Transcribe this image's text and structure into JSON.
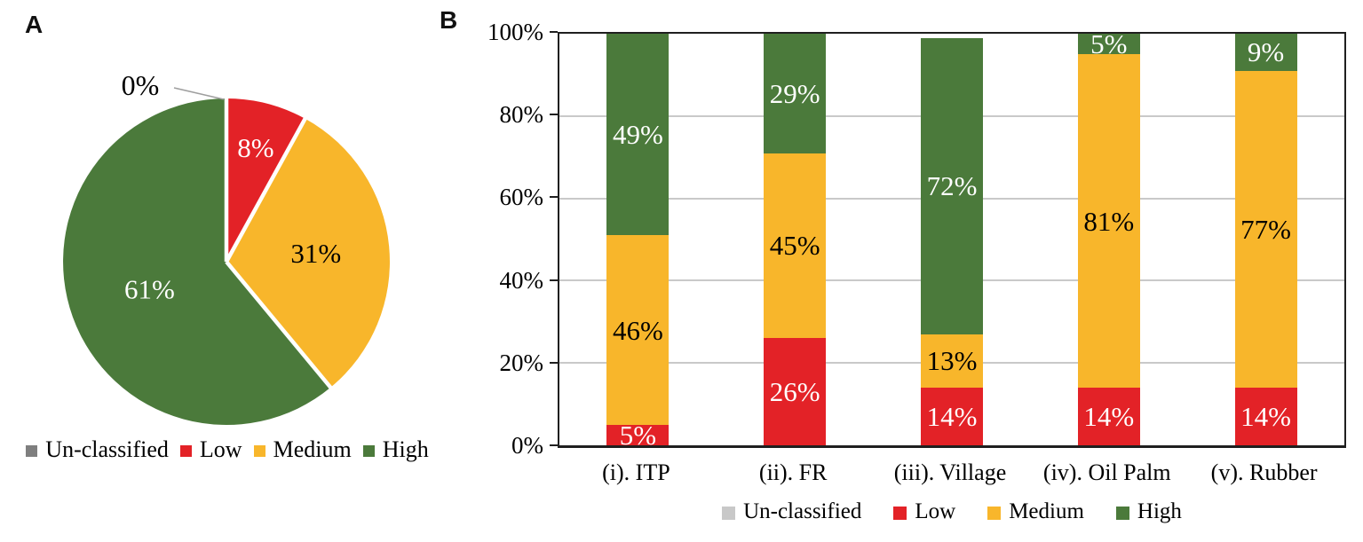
{
  "figure": {
    "panelA_label": "A",
    "panelB_label": "B"
  },
  "colors": {
    "low": "#E32227",
    "medium": "#F8B62B",
    "high": "#4B7A3B",
    "unclassified_pie_legend": "#7F7F7F",
    "unclassified_bar_legend": "#C8C8C8",
    "axis": "#1F1F1F",
    "gridline": "#C9C9C9",
    "leader_line": "#9E9E9E",
    "background": "#FFFFFF"
  },
  "chart_data": [
    {
      "type": "pie",
      "panel": "A",
      "start_angle": "12 o'clock, clockwise",
      "slices": [
        {
          "label": "Un-classified",
          "value": 0,
          "color": "#7F7F7F",
          "data_label": "0%",
          "label_color": "#000000",
          "callout": true
        },
        {
          "label": "Low",
          "value": 8,
          "color": "#E32227",
          "data_label": "8%",
          "label_color": "#FFFFFF",
          "label_r": 0.72
        },
        {
          "label": "Medium",
          "value": 31,
          "color": "#F8B62B",
          "data_label": "31%",
          "label_color": "#000000",
          "label_r": 0.55
        },
        {
          "label": "High",
          "value": 61,
          "color": "#4B7A3B",
          "data_label": "61%",
          "label_color": "#FFFFFF",
          "label_r": 0.5
        }
      ],
      "legend": [
        {
          "label": "Un-classified",
          "color": "#7F7F7F"
        },
        {
          "label": "Low",
          "color": "#E32227"
        },
        {
          "label": "Medium",
          "color": "#F8B62B"
        },
        {
          "label": "High",
          "color": "#4B7A3B"
        }
      ],
      "legend_position": "bottom"
    },
    {
      "type": "bar",
      "panel": "B",
      "stacked": true,
      "categories": [
        "(i). ITP",
        "(ii). FR",
        "(iii). Village",
        "(iv). Oil Palm",
        "(v). Rubber"
      ],
      "series": [
        {
          "name": "Un-classified",
          "color": "#C8C8C8",
          "label_color": "#000000",
          "values": [
            0,
            0,
            0,
            0,
            0
          ]
        },
        {
          "name": "Low",
          "color": "#E32227",
          "label_color": "#FFFFFF",
          "values": [
            5,
            26,
            14,
            14,
            14
          ]
        },
        {
          "name": "Medium",
          "color": "#F8B62B",
          "label_color": "#000000",
          "values": [
            46,
            45,
            13,
            81,
            77
          ]
        },
        {
          "name": "High",
          "color": "#4B7A3B",
          "label_color": "#FFFFFF",
          "values": [
            49,
            29,
            72,
            5,
            9
          ]
        }
      ],
      "data_labels": {
        "Low": [
          "5%",
          "26%",
          "14%",
          "14%",
          "14%"
        ],
        "Medium": [
          "46%",
          "45%",
          "13%",
          "81%",
          "77%"
        ],
        "High": [
          "49%",
          "29%",
          "72%",
          "5%",
          "9%"
        ]
      },
      "y_ticks": [
        "0%",
        "20%",
        "40%",
        "60%",
        "80%",
        "100%"
      ],
      "ylim": [
        0,
        100
      ],
      "grid": true,
      "legend_position": "bottom"
    }
  ]
}
